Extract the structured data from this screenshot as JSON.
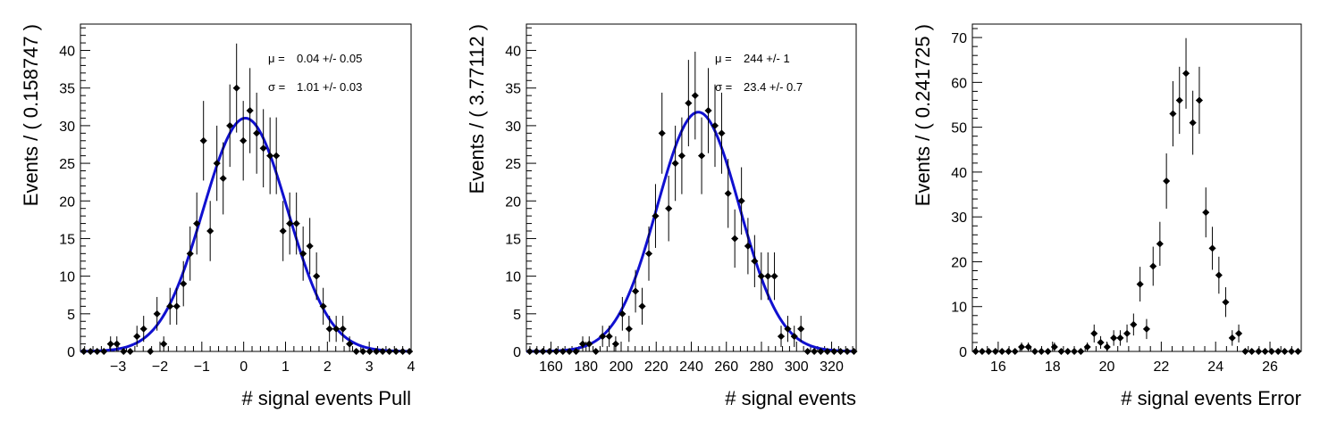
{
  "chart_data": [
    {
      "type": "scatter",
      "xlabel": "# signal events Pull",
      "ylabel": "Events / ( 0.158747 )",
      "xlim": [
        -3.9,
        4.0
      ],
      "ylim": [
        0,
        43.5
      ],
      "xticks": [
        -3,
        -2,
        -1,
        0,
        1,
        2,
        3,
        4
      ],
      "xtick_labels": [
        "−3",
        "−2",
        "−1",
        "0",
        "1",
        "2",
        "3",
        "4"
      ],
      "yticks": [
        0,
        5,
        10,
        15,
        20,
        25,
        30,
        35,
        40
      ],
      "ytick_labels": [
        "0",
        "5",
        "10",
        "15",
        "20",
        "25",
        "30",
        "35",
        "40"
      ],
      "annotations": [
        {
          "label": "μ =",
          "value": "0.04 +/- 0.05"
        },
        {
          "label": "σ =",
          "value": "1.01 +/- 0.03"
        }
      ],
      "fit": {
        "type": "gaussian",
        "mean": 0.04,
        "sigma": 1.01,
        "amplitude": 31.0
      },
      "series": [
        {
          "points": {
            "x": [
              -3.82,
              -3.66,
              -3.5,
              -3.34,
              -3.18,
              -3.03,
              -2.87,
              -2.71,
              -2.55,
              -2.39,
              -2.23,
              -2.07,
              -1.91,
              -1.76,
              -1.6,
              -1.44,
              -1.28,
              -1.12,
              -0.96,
              -0.8,
              -0.64,
              -0.49,
              -0.33,
              -0.17,
              -0.01,
              0.15,
              0.31,
              0.47,
              0.63,
              0.78,
              0.94,
              1.1,
              1.26,
              1.42,
              1.58,
              1.74,
              1.9,
              2.05,
              2.21,
              2.37,
              2.53,
              2.69,
              2.85,
              3.01,
              3.17,
              3.32,
              3.48,
              3.64,
              3.8,
              3.96
            ],
            "y": [
              0,
              0,
              0,
              0,
              1,
              1,
              0,
              0,
              2,
              3,
              0,
              5,
              1,
              6,
              6,
              9,
              13,
              17,
              28,
              16,
              25,
              23,
              30,
              35,
              28,
              32,
              29,
              27,
              26,
              26,
              16,
              17,
              17,
              13,
              14,
              10,
              6,
              3,
              3,
              3,
              1,
              0,
              0,
              0,
              0,
              0,
              0,
              0,
              0,
              0
            ]
          }
        }
      ]
    },
    {
      "type": "scatter",
      "xlabel": "# signal events",
      "ylabel": "Events / ( 3.77112 )",
      "xlim": [
        146.0,
        334.0
      ],
      "ylim": [
        0,
        43.5
      ],
      "xticks": [
        160,
        180,
        200,
        220,
        240,
        260,
        280,
        300,
        320
      ],
      "xtick_labels": [
        "160",
        "180",
        "200",
        "220",
        "240",
        "260",
        "280",
        "300",
        "320"
      ],
      "yticks": [
        0,
        5,
        10,
        15,
        20,
        25,
        30,
        35,
        40
      ],
      "ytick_labels": [
        "0",
        "5",
        "10",
        "15",
        "20",
        "25",
        "30",
        "35",
        "40"
      ],
      "annotations": [
        {
          "label": "μ =",
          "value": "244 +/- 1"
        },
        {
          "label": "σ =",
          "value": "23.4 +/- 0.7"
        }
      ],
      "fit": {
        "type": "gaussian",
        "mean": 244,
        "sigma": 23.4,
        "amplitude": 31.8
      },
      "series": [
        {
          "points": {
            "x": [
              147.9,
              151.7,
              155.4,
              159.2,
              163.0,
              166.8,
              170.5,
              174.3,
              178.1,
              181.8,
              185.6,
              189.4,
              193.2,
              196.9,
              200.7,
              204.5,
              208.2,
              212.0,
              215.8,
              219.6,
              223.3,
              227.1,
              230.9,
              234.6,
              238.4,
              242.2,
              245.9,
              249.7,
              253.5,
              257.3,
              261.0,
              264.8,
              268.6,
              272.3,
              276.1,
              279.9,
              283.7,
              287.4,
              291.2,
              295.0,
              298.7,
              302.5,
              306.3,
              310.1,
              313.8,
              317.6,
              321.4,
              325.1,
              328.9,
              332.7
            ],
            "y": [
              0,
              0,
              0,
              0,
              0,
              0,
              0,
              0,
              1,
              1,
              0,
              2,
              2,
              1,
              5,
              3,
              8,
              6,
              13,
              18,
              29,
              19,
              25,
              26,
              33,
              34,
              26,
              32,
              30,
              29,
              21,
              15,
              20,
              14,
              12,
              10,
              10,
              10,
              2,
              3,
              2,
              3,
              0,
              0,
              0,
              0,
              0,
              0,
              0,
              0
            ]
          }
        }
      ]
    },
    {
      "type": "scatter",
      "xlabel": "# signal events Error",
      "ylabel": "Events / ( 0.241725 )",
      "xlim": [
        15.05,
        27.15
      ],
      "ylim": [
        0,
        73.0
      ],
      "xticks": [
        16,
        18,
        20,
        22,
        24,
        26
      ],
      "xtick_labels": [
        "16",
        "18",
        "20",
        "22",
        "24",
        "26"
      ],
      "yticks": [
        0,
        10,
        20,
        30,
        40,
        50,
        60,
        70
      ],
      "ytick_labels": [
        "0",
        "10",
        "20",
        "30",
        "40",
        "50",
        "60",
        "70"
      ],
      "series": [
        {
          "points": {
            "x": [
              15.17,
              15.41,
              15.65,
              15.9,
              16.14,
              16.38,
              16.62,
              16.86,
              17.11,
              17.35,
              17.59,
              17.83,
              18.07,
              18.32,
              18.56,
              18.8,
              19.04,
              19.28,
              19.53,
              19.77,
              20.01,
              20.25,
              20.49,
              20.74,
              20.98,
              21.22,
              21.46,
              21.7,
              21.95,
              22.19,
              22.43,
              22.67,
              22.91,
              23.16,
              23.4,
              23.64,
              23.88,
              24.12,
              24.37,
              24.61,
              24.85,
              25.09,
              25.33,
              25.58,
              25.82,
              26.06,
              26.3,
              26.54,
              26.79,
              27.03
            ],
            "y": [
              0,
              0,
              0,
              0,
              0,
              0,
              0,
              1,
              1,
              0,
              0,
              0,
              1,
              0,
              0,
              0,
              0,
              1,
              4,
              2,
              1,
              3,
              3,
              4,
              6,
              15,
              5,
              19,
              24,
              38,
              53,
              56,
              62,
              51,
              56,
              31,
              23,
              17,
              11,
              3,
              4,
              0,
              0,
              0,
              0,
              0,
              0,
              0,
              0,
              0
            ]
          }
        }
      ]
    }
  ]
}
